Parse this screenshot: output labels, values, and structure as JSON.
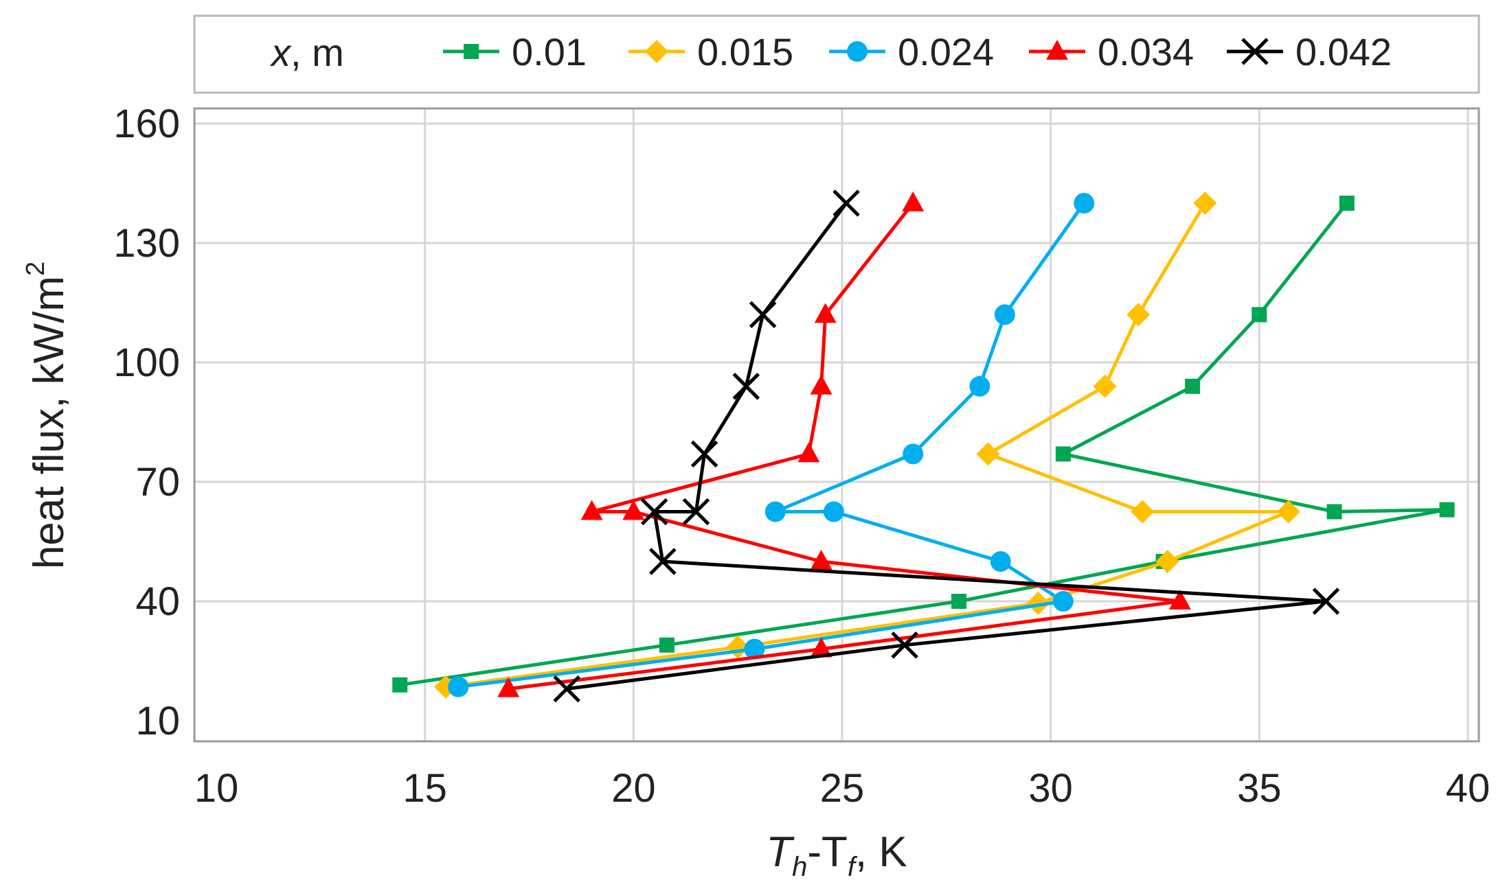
{
  "chart_data": {
    "type": "line",
    "title": "",
    "xlabel": {
      "main": "T",
      "sub1": "h",
      "mid": "-T",
      "sub2": "f",
      "unit": ", K"
    },
    "ylabel": {
      "main": "heat flux, kW/m",
      "sup": "2"
    },
    "xlim": [
      10,
      40
    ],
    "ylim": [
      10,
      160
    ],
    "x_ticks": [
      "10",
      "15",
      "20",
      "25",
      "30",
      "35",
      "40"
    ],
    "y_ticks": [
      "10",
      "40",
      "70",
      "100",
      "130",
      "160"
    ],
    "grid": true,
    "legend_position": "top",
    "legend_title": {
      "var": "x",
      "unit": ", m"
    },
    "series": [
      {
        "name": "0.01",
        "color": "#00a651",
        "marker": "square",
        "points": [
          [
            14.4,
            19
          ],
          [
            20.8,
            29
          ],
          [
            27.8,
            40
          ],
          [
            32.7,
            50
          ],
          [
            39.5,
            63
          ],
          [
            36.8,
            62.5
          ],
          [
            30.3,
            77
          ],
          [
            33.4,
            94
          ],
          [
            35.0,
            112
          ],
          [
            37.1,
            140
          ]
        ]
      },
      {
        "name": "0.015",
        "color": "#ffc000",
        "marker": "diamond",
        "points": [
          [
            15.5,
            18.5
          ],
          [
            22.5,
            28.5
          ],
          [
            29.7,
            39.5
          ],
          [
            32.8,
            50
          ],
          [
            35.7,
            62.5
          ],
          [
            32.2,
            62.5
          ],
          [
            28.5,
            77
          ],
          [
            31.3,
            94
          ],
          [
            32.1,
            112
          ],
          [
            33.7,
            140
          ]
        ]
      },
      {
        "name": "0.024",
        "color": "#00aeef",
        "marker": "circle",
        "points": [
          [
            15.8,
            18.5
          ],
          [
            22.9,
            28
          ],
          [
            30.3,
            40
          ],
          [
            28.8,
            50
          ],
          [
            24.8,
            62.5
          ],
          [
            23.4,
            62.5
          ],
          [
            26.7,
            77
          ],
          [
            28.3,
            94
          ],
          [
            28.9,
            112
          ],
          [
            30.8,
            140
          ]
        ]
      },
      {
        "name": "0.034",
        "color": "#ff0000",
        "marker": "triangle",
        "points": [
          [
            17.0,
            18
          ],
          [
            24.5,
            28
          ],
          [
            33.1,
            40
          ],
          [
            24.5,
            50
          ],
          [
            20.0,
            62.5
          ],
          [
            19.0,
            62.5
          ],
          [
            24.2,
            77
          ],
          [
            24.5,
            94
          ],
          [
            24.6,
            112
          ],
          [
            26.7,
            140
          ]
        ]
      },
      {
        "name": "0.042",
        "color": "#000000",
        "marker": "x",
        "points": [
          [
            18.4,
            18
          ],
          [
            26.5,
            29
          ],
          [
            36.6,
            40
          ],
          [
            20.7,
            50
          ],
          [
            20.5,
            62.5
          ],
          [
            21.5,
            62.5
          ],
          [
            21.7,
            77
          ],
          [
            22.7,
            94
          ],
          [
            23.1,
            112
          ],
          [
            25.1,
            140
          ]
        ]
      }
    ]
  }
}
